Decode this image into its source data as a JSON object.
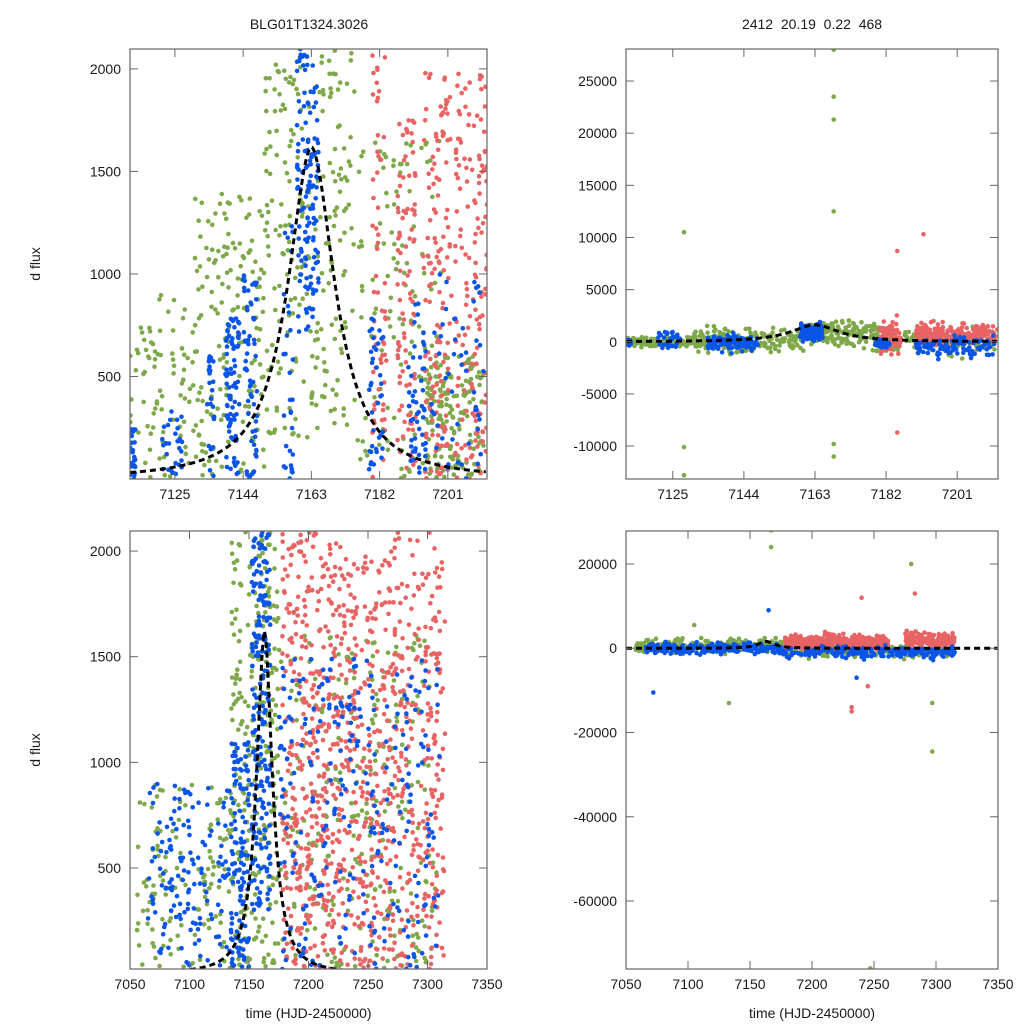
{
  "figure": {
    "left_title": "BLG01T1324.3026",
    "right_title": "2412  20.19  0.22  468"
  },
  "colors": {
    "series_blue": "#0a55e8",
    "series_green": "#7ea84a",
    "series_red": "#e86464",
    "model": "#000000",
    "axis": "#666666"
  },
  "chart_data": [
    {
      "id": "top-left",
      "type": "scatter",
      "title": "BLG01T1324.3026",
      "xlabel": "",
      "ylabel": "d flux",
      "xlim": [
        7112.5,
        7211.9
      ],
      "ylim": [
        0,
        2097
      ],
      "xticks": [
        7125,
        7144,
        7163,
        7182,
        7201
      ],
      "xtick_labels": [
        "7125",
        "7144",
        "7163",
        "7182",
        "7201"
      ],
      "yticks": [
        500,
        1000,
        1500,
        2000
      ],
      "ytick_labels": [
        "500",
        "1000",
        "1500",
        "2000"
      ],
      "grid": false,
      "model_curve": {
        "style": "dashed",
        "peak_x": 7163,
        "peak_y": 1620,
        "width_days": 9,
        "baseline": 0
      },
      "series": [
        {
          "name": "blue",
          "color": "#0a55e8",
          "clusters": [
            {
              "x": [
                7112.5,
                7114
              ],
              "y": [
                0,
                250
              ],
              "n": 25
            },
            {
              "x": [
                7121,
                7127
              ],
              "y": [
                0,
                350
              ],
              "n": 30
            },
            {
              "x": [
                7134,
                7136
              ],
              "y": [
                0,
                600
              ],
              "n": 25
            },
            {
              "x": [
                7139,
                7143
              ],
              "y": [
                0,
                800
              ],
              "n": 80
            },
            {
              "x": [
                7144,
                7148
              ],
              "y": [
                0,
                1000
              ],
              "n": 60
            },
            {
              "x": [
                7159,
                7165
              ],
              "y": [
                700,
                2097
              ],
              "n": 130
            },
            {
              "x": [
                7155,
                7158
              ],
              "y": [
                0,
                1300
              ],
              "n": 30
            },
            {
              "x": [
                7179,
                7183
              ],
              "y": [
                0,
                800
              ],
              "n": 40
            },
            {
              "x": [
                7190,
                7195
              ],
              "y": [
                0,
                900
              ],
              "n": 50
            },
            {
              "x": [
                7196,
                7211
              ],
              "y": [
                0,
                1000
              ],
              "n": 50
            }
          ]
        },
        {
          "name": "green",
          "color": "#7ea84a",
          "clusters": [
            {
              "x": [
                7112.5,
                7130
              ],
              "y": [
                0,
                900
              ],
              "n": 80
            },
            {
              "x": [
                7130,
                7150
              ],
              "y": [
                0,
                1400
              ],
              "n": 160
            },
            {
              "x": [
                7150,
                7175
              ],
              "y": [
                200,
                2097
              ],
              "n": 220
            },
            {
              "x": [
                7175,
                7200
              ],
              "y": [
                0,
                1700
              ],
              "n": 120
            },
            {
              "x": [
                7195,
                7211
              ],
              "y": [
                0,
                600
              ],
              "n": 150
            }
          ]
        },
        {
          "name": "red",
          "color": "#e86464",
          "clusters": [
            {
              "x": [
                7180,
                7184
              ],
              "y": [
                0,
                2097
              ],
              "n": 60
            },
            {
              "x": [
                7187,
                7192
              ],
              "y": [
                0,
                1800
              ],
              "n": 90
            },
            {
              "x": [
                7194,
                7202
              ],
              "y": [
                0,
                2000
              ],
              "n": 130
            },
            {
              "x": [
                7203,
                7211.9
              ],
              "y": [
                0,
                2000
              ],
              "n": 140
            }
          ]
        }
      ]
    },
    {
      "id": "top-right",
      "type": "scatter",
      "title": "2412  20.19  0.22  468",
      "xlabel": "",
      "ylabel": "",
      "xlim": [
        7112.5,
        7211.9
      ],
      "ylim": [
        -13160,
        28070
      ],
      "xticks": [
        7125,
        7144,
        7163,
        7182,
        7201
      ],
      "xtick_labels": [
        "7125",
        "7144",
        "7163",
        "7182",
        "7201"
      ],
      "yticks": [
        -10000,
        -5000,
        0,
        5000,
        10000,
        15000,
        20000,
        25000
      ],
      "ytick_labels": [
        "-10000",
        "-5000",
        "0",
        "5000",
        "10000",
        "15000",
        "20000",
        "25000"
      ],
      "grid": false,
      "model_curve": {
        "style": "dashed",
        "peak_x": 7163,
        "peak_y": 1620,
        "width_days": 9,
        "baseline": 0
      },
      "series": [
        {
          "name": "blue",
          "color": "#0a55e8",
          "clusters": [
            {
              "x": [
                7112.5,
                7114
              ],
              "y": [
                -800,
                600
              ],
              "n": 25
            },
            {
              "x": [
                7121,
                7127
              ],
              "y": [
                -2500,
                3000
              ],
              "n": 30
            },
            {
              "x": [
                7134,
                7148
              ],
              "y": [
                -2000,
                1500
              ],
              "n": 120
            },
            {
              "x": [
                7159,
                7165
              ],
              "y": [
                -500,
                3500
              ],
              "n": 130
            },
            {
              "x": [
                7179,
                7183
              ],
              "y": [
                -1500,
                1000
              ],
              "n": 40
            },
            {
              "x": [
                7190,
                7211
              ],
              "y": [
                -3000,
                1500
              ],
              "n": 100
            }
          ]
        },
        {
          "name": "green",
          "color": "#7ea84a",
          "clusters": [
            {
              "x": [
                7112.5,
                7130
              ],
              "y": [
                -1200,
                1200
              ],
              "n": 120
            },
            {
              "x": [
                7130,
                7160
              ],
              "y": [
                -2500,
                3000
              ],
              "n": 180
            },
            {
              "x": [
                7160,
                7180
              ],
              "y": [
                -2000,
                4500
              ],
              "n": 180
            },
            {
              "x": [
                7180,
                7211
              ],
              "y": [
                -3000,
                3000
              ],
              "n": 100
            }
          ],
          "outliers": [
            {
              "x": 7168,
              "y": 28000
            },
            {
              "x": 7168,
              "y": 23500
            },
            {
              "x": 7168,
              "y": 21300
            },
            {
              "x": 7168,
              "y": 12500
            },
            {
              "x": 7128,
              "y": 10500
            },
            {
              "x": 7168,
              "y": -11000
            },
            {
              "x": 7168,
              "y": -9800
            },
            {
              "x": 7128,
              "y": -10100
            },
            {
              "x": 7128,
              "y": -12800
            }
          ]
        },
        {
          "name": "red",
          "color": "#e86464",
          "clusters": [
            {
              "x": [
                7180,
                7186
              ],
              "y": [
                -2800,
                4500
              ],
              "n": 70
            },
            {
              "x": [
                7190,
                7196
              ],
              "y": [
                -1500,
                4000
              ],
              "n": 80
            },
            {
              "x": [
                7196,
                7211.9
              ],
              "y": [
                -1000,
                3500
              ],
              "n": 140
            }
          ],
          "outliers": [
            {
              "x": 7192,
              "y": 10300
            },
            {
              "x": 7185,
              "y": 8700
            },
            {
              "x": 7185,
              "y": -8700
            }
          ]
        }
      ]
    },
    {
      "id": "bottom-left",
      "type": "scatter",
      "title": "",
      "xlabel": "time (HJD-2450000)",
      "ylabel": "d flux",
      "xlim": [
        7050,
        7350
      ],
      "ylim": [
        22,
        2095
      ],
      "xticks": [
        7050,
        7100,
        7150,
        7200,
        7250,
        7300,
        7350
      ],
      "xtick_labels": [
        "7050",
        "7100",
        "7150",
        "7200",
        "7250",
        "7300",
        "7350"
      ],
      "yticks": [
        500,
        1000,
        1500,
        2000
      ],
      "ytick_labels": [
        "500",
        "1000",
        "1500",
        "2000"
      ],
      "grid": false,
      "model_curve": {
        "style": "dashed",
        "peak_x": 7163,
        "peak_y": 1620,
        "width_days": 9,
        "baseline": 0
      },
      "series": [
        {
          "name": "blue",
          "color": "#0a55e8",
          "clusters": [
            {
              "x": [
                7065,
                7135
              ],
              "y": [
                22,
                900
              ],
              "n": 140
            },
            {
              "x": [
                7135,
                7150
              ],
              "y": [
                22,
                1100
              ],
              "n": 120
            },
            {
              "x": [
                7152,
                7168
              ],
              "y": [
                300,
                2095
              ],
              "n": 200
            },
            {
              "x": [
                7175,
                7310
              ],
              "y": [
                22,
                1500
              ],
              "n": 260
            }
          ]
        },
        {
          "name": "green",
          "color": "#7ea84a",
          "clusters": [
            {
              "x": [
                7055,
                7135
              ],
              "y": [
                22,
                900
              ],
              "n": 120
            },
            {
              "x": [
                7135,
                7175
              ],
              "y": [
                22,
                2095
              ],
              "n": 260
            },
            {
              "x": [
                7175,
                7310
              ],
              "y": [
                22,
                1600
              ],
              "n": 260
            }
          ]
        },
        {
          "name": "red",
          "color": "#e86464",
          "clusters": [
            {
              "x": [
                7178,
                7230
              ],
              "y": [
                22,
                2095
              ],
              "n": 420
            },
            {
              "x": [
                7230,
                7270
              ],
              "y": [
                22,
                2000
              ],
              "n": 260
            },
            {
              "x": [
                7270,
                7315
              ],
              "y": [
                22,
                2095
              ],
              "n": 260
            }
          ]
        }
      ]
    },
    {
      "id": "bottom-right",
      "type": "scatter",
      "title": "",
      "xlabel": "time (HJD-2450000)",
      "ylabel": "",
      "xlim": [
        7050,
        7350
      ],
      "ylim": [
        -76140,
        27830
      ],
      "xticks": [
        7050,
        7100,
        7150,
        7200,
        7250,
        7300,
        7350
      ],
      "xtick_labels": [
        "7050",
        "7100",
        "7150",
        "7200",
        "7250",
        "7300",
        "7350"
      ],
      "yticks": [
        -60000,
        -40000,
        -20000,
        0,
        20000
      ],
      "ytick_labels": [
        "-60000",
        "-40000",
        "-20000",
        "0",
        "20000"
      ],
      "grid": false,
      "model_curve": {
        "style": "dashed",
        "peak_x": 7163,
        "peak_y": 1620,
        "width_days": 9,
        "baseline": 0
      },
      "series": [
        {
          "name": "blue",
          "color": "#0a55e8",
          "clusters": [
            {
              "x": [
                7065,
                7175
              ],
              "y": [
                -3000,
                3000
              ],
              "n": 220
            },
            {
              "x": [
                7175,
                7315
              ],
              "y": [
                -5000,
                1500
              ],
              "n": 200
            }
          ],
          "outliers": [
            {
              "x": 7072,
              "y": -10500
            },
            {
              "x": 7165,
              "y": 9000
            },
            {
              "x": 7236,
              "y": -7000
            }
          ]
        },
        {
          "name": "green",
          "color": "#7ea84a",
          "clusters": [
            {
              "x": [
                7055,
                7180
              ],
              "y": [
                -3000,
                5000
              ],
              "n": 220
            },
            {
              "x": [
                7180,
                7315
              ],
              "y": [
                -5000,
                3000
              ],
              "n": 140
            }
          ],
          "outliers": [
            {
              "x": 7167,
              "y": 28000
            },
            {
              "x": 7167,
              "y": 24000
            },
            {
              "x": 7133,
              "y": -13000
            },
            {
              "x": 7247,
              "y": -76000
            },
            {
              "x": 7297,
              "y": -24500
            },
            {
              "x": 7297,
              "y": -13000
            },
            {
              "x": 7280,
              "y": 20000
            },
            {
              "x": 7105,
              "y": 5500
            }
          ]
        },
        {
          "name": "red",
          "color": "#e86464",
          "clusters": [
            {
              "x": [
                7178,
                7240
              ],
              "y": [
                -2000,
                7000
              ],
              "n": 260
            },
            {
              "x": [
                7240,
                7262
              ],
              "y": [
                -1500,
                6000
              ],
              "n": 100
            },
            {
              "x": [
                7275,
                7315
              ],
              "y": [
                -1500,
                8000
              ],
              "n": 180
            }
          ],
          "outliers": [
            {
              "x": 7232,
              "y": -14000
            },
            {
              "x": 7232,
              "y": -15000
            },
            {
              "x": 7240,
              "y": 12000
            },
            {
              "x": 7283,
              "y": 13000
            },
            {
              "x": 7245,
              "y": -9000
            }
          ]
        }
      ]
    }
  ]
}
